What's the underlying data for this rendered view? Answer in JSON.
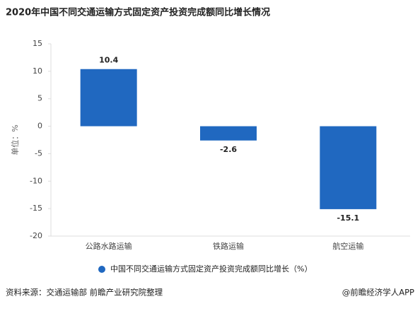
{
  "chart_data": {
    "type": "bar",
    "title": "2020年中国不同交通运输方式固定资产投资完成额同比增长情况",
    "y_label": "单位：%",
    "categories": [
      "公路水路运输",
      "铁路运输",
      "航空运输"
    ],
    "series": [
      {
        "name": "中国不同交通运输方式固定资产投资完成额同比增长（%）",
        "color": "#2068c0",
        "values": [
          10.4,
          -2.6,
          -15.1
        ]
      }
    ],
    "ylim": [
      -20,
      15
    ],
    "yticks": [
      -20,
      -15,
      -10,
      -5,
      0,
      5,
      10,
      15
    ],
    "grid": false,
    "legend": "bottom"
  },
  "footer": {
    "source": "资料来源：交通运输部 前瞻产业研究院整理",
    "credit": "@前瞻经济学人APP"
  }
}
